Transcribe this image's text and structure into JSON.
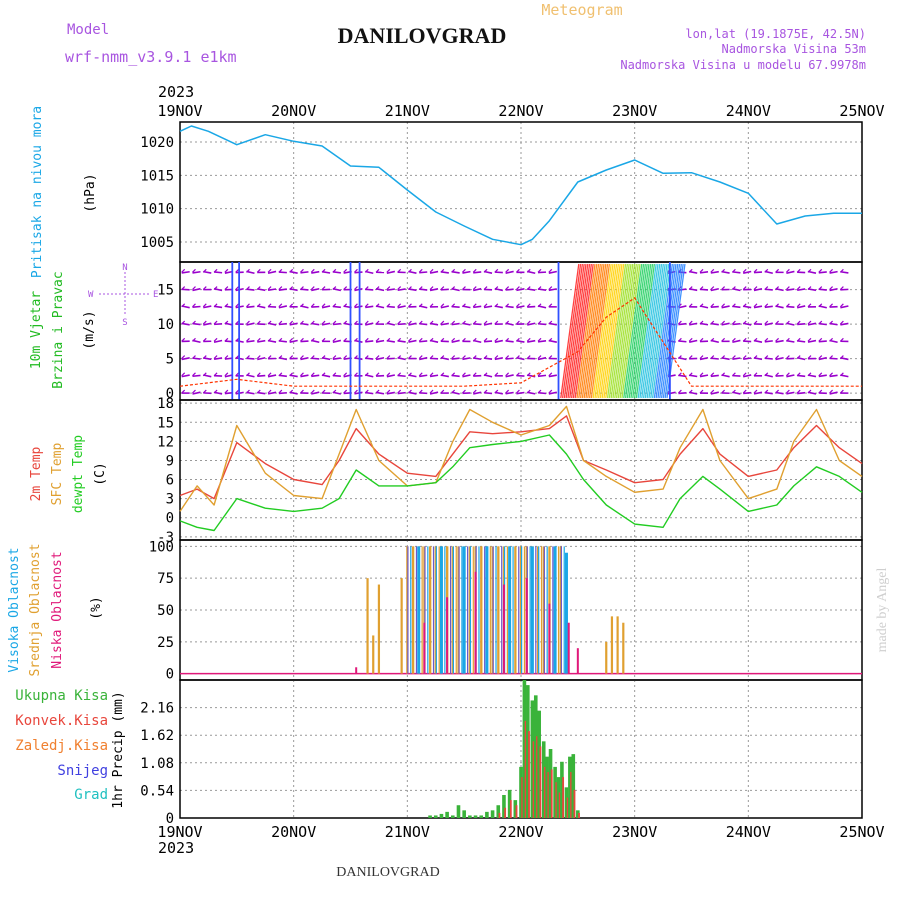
{
  "header": {
    "model_label": "Model",
    "model_name": "wrf-nmm_v3.9.1 e1km",
    "title": "DANILOVGRAD",
    "subtitle": "Meteogram",
    "coords": "lon,lat (19.1875E, 42.5N)",
    "elevation": "Nadmorska Visina 53m",
    "model_elevation": "Nadmorska Visina u modelu 67.9978m",
    "footer_title": "DANILOVGRAD",
    "credit": "made by Angel"
  },
  "colors": {
    "pressure": "#1aa7e6",
    "wind_label": "#22bb22",
    "wind_arrows": "#9900cc",
    "wind_gust": "#ff3300",
    "temp_2m": "#e8463c",
    "temp_sfc": "#e0a030",
    "temp_dew": "#22cc22",
    "cloud_high": "#1aa7e6",
    "cloud_mid": "#e0a030",
    "cloud_low": "#e0197a",
    "precip_total": "#3ab33a",
    "precip_conv": "#e8463c",
    "precip_frz": "#f08030",
    "precip_snow": "#4040e0",
    "precip_grad": "#20c0c0",
    "grid": "#999999"
  },
  "chart_data": [
    {
      "type": "line",
      "panel": "pressure",
      "label": "Pritisak na nivou mora",
      "unit": "(hPa)",
      "x_labels_top_year": "2023",
      "x_labels": [
        "19NOV",
        "20NOV",
        "21NOV",
        "22NOV",
        "23NOV",
        "24NOV",
        "25NOV"
      ],
      "ylim": [
        1002,
        1023
      ],
      "yticks": [
        1005,
        1010,
        1015,
        1020
      ],
      "x": [
        0,
        0.1,
        0.25,
        0.5,
        0.75,
        1.0,
        1.25,
        1.5,
        1.75,
        2.0,
        2.25,
        2.5,
        2.75,
        3.0,
        3.1,
        3.25,
        3.5,
        3.75,
        4.0,
        4.25,
        4.5,
        4.75,
        5.0,
        5.25,
        5.5,
        5.75,
        6.0
      ],
      "values": [
        1021.6,
        1022.4,
        1021.6,
        1019.6,
        1021.1,
        1020.1,
        1019.4,
        1016.4,
        1016.2,
        1012.8,
        1009.5,
        1007.4,
        1005.4,
        1004.6,
        1005.4,
        1008.2,
        1014.0,
        1015.8,
        1017.3,
        1015.3,
        1015.4,
        1014.0,
        1012.3,
        1007.7,
        1008.9,
        1009.3,
        1009.3
      ]
    },
    {
      "type": "line",
      "panel": "wind",
      "label_1": "10m Vjetar",
      "label_2": "Brzina i Pravac",
      "unit": "(m/s)",
      "compass": "N",
      "compass_e": "E",
      "compass_w": "W",
      "compass_s": "S",
      "ylim": [
        -1,
        19
      ],
      "yticks": [
        0,
        5,
        10,
        15
      ],
      "x": [
        0,
        0.25,
        0.5,
        1.0,
        1.5,
        2.0,
        2.5,
        3.0,
        3.5,
        3.75,
        4.0,
        4.5,
        5.0,
        6.0
      ],
      "gust": [
        1.0,
        1.5,
        2.0,
        1.0,
        1.0,
        1.0,
        1.0,
        1.5,
        6.0,
        11.0,
        13.8,
        1.0,
        1.0,
        1.0
      ],
      "storm_window": [
        3.35,
        4.3
      ]
    },
    {
      "type": "line",
      "panel": "temperature",
      "label_2m": "2m Temp",
      "label_sfc": "SFC Temp",
      "label_dew": "dewpt Temp",
      "unit": "(C)",
      "ylim": [
        -3.5,
        18.5
      ],
      "yticks": [
        -3,
        0,
        3,
        6,
        9,
        12,
        15,
        18
      ],
      "x": [
        0,
        0.15,
        0.3,
        0.5,
        0.75,
        1.0,
        1.25,
        1.4,
        1.55,
        1.75,
        2.0,
        2.25,
        2.4,
        2.55,
        2.75,
        3.0,
        3.25,
        3.4,
        3.55,
        3.75,
        4.0,
        4.25,
        4.4,
        4.6,
        4.75,
        5.0,
        5.25,
        5.4,
        5.6,
        5.8,
        6.0
      ],
      "series": [
        {
          "name": "2m Temp",
          "values": [
            3.5,
            4.5,
            3.0,
            11.8,
            8.5,
            6.0,
            5.2,
            9.0,
            14.0,
            10.0,
            7.0,
            6.5,
            10.0,
            13.5,
            13.2,
            13.5,
            14.0,
            16.0,
            9.0,
            7.5,
            5.5,
            6.0,
            10.0,
            14.0,
            10.0,
            6.5,
            7.5,
            11.0,
            14.5,
            11.0,
            8.5
          ]
        },
        {
          "name": "SFC Temp",
          "values": [
            1.0,
            5.0,
            2.0,
            14.5,
            7.0,
            3.5,
            3.0,
            10.0,
            17.0,
            9.0,
            5.0,
            5.5,
            12.0,
            17.0,
            15.0,
            13.0,
            14.5,
            17.5,
            9.0,
            6.5,
            4.0,
            4.5,
            11.0,
            17.0,
            9.0,
            3.0,
            4.5,
            12.0,
            17.0,
            9.0,
            6.5
          ]
        },
        {
          "name": "dewpt Temp",
          "values": [
            -0.5,
            -1.5,
            -2.0,
            3.0,
            1.5,
            1.0,
            1.5,
            3.0,
            7.5,
            5.0,
            5.0,
            5.5,
            8.0,
            11.0,
            11.5,
            12.0,
            13.0,
            10.0,
            6.0,
            2.0,
            -1.0,
            -1.5,
            3.0,
            6.5,
            4.5,
            1.0,
            2.0,
            5.0,
            8.0,
            6.5,
            4.0
          ]
        }
      ]
    },
    {
      "type": "bar",
      "panel": "cloud",
      "label_high": "Visoka Oblacnost",
      "label_mid": "Srednja Oblacnost",
      "label_low": "Niska Oblacnost",
      "unit": "(%)",
      "ylim": [
        -5,
        105
      ],
      "yticks": [
        0,
        25,
        50,
        75,
        100
      ],
      "mid_cloud_x": [
        1.65,
        1.7,
        1.75,
        1.95,
        2.0,
        2.05,
        2.1,
        2.15,
        2.2,
        2.25,
        2.3,
        2.35,
        2.4,
        2.45,
        2.5,
        2.55,
        2.6,
        2.65,
        2.7,
        2.75,
        2.8,
        2.85,
        2.9,
        2.95,
        3.0,
        3.05,
        3.1,
        3.15,
        3.2,
        3.25,
        3.3,
        3.35,
        3.75,
        3.8,
        3.85,
        3.9
      ],
      "mid_cloud_values": [
        75,
        30,
        70,
        75,
        100,
        100,
        100,
        100,
        100,
        100,
        100,
        100,
        100,
        100,
        100,
        100,
        100,
        100,
        100,
        100,
        100,
        100,
        100,
        100,
        100,
        100,
        100,
        100,
        100,
        100,
        100,
        100,
        25,
        45,
        45,
        40
      ],
      "high_cloud_x": [
        2.1,
        2.3,
        2.5,
        2.7,
        2.9,
        3.1,
        3.3,
        3.4
      ],
      "high_cloud_values": [
        100,
        100,
        100,
        100,
        100,
        100,
        100,
        95
      ],
      "low_cloud_x": [
        1.55,
        2.15,
        2.35,
        2.6,
        2.85,
        3.05,
        3.25,
        3.42,
        3.5
      ],
      "low_cloud_values": [
        5,
        40,
        60,
        80,
        70,
        75,
        55,
        40,
        20
      ]
    },
    {
      "type": "bar",
      "panel": "precip",
      "label_total": "Ukupna Kisa",
      "label_conv": "Konvek.Kisa",
      "label_frz": "Zaledj.Kisa",
      "label_snow": "Snijeg",
      "label_grad": "Grad",
      "unit": "1hr Precip (mm)",
      "ylim": [
        0,
        2.7
      ],
      "yticks": [
        0,
        0.54,
        1.08,
        1.62,
        2.16
      ],
      "ytick_labels": [
        "0",
        "0.54",
        "1.08",
        "1.62",
        "2.16"
      ],
      "x_labels_bottom_year": "2023",
      "x": [
        2.2,
        2.25,
        2.3,
        2.35,
        2.4,
        2.45,
        2.5,
        2.55,
        2.6,
        2.65,
        2.7,
        2.75,
        2.8,
        2.85,
        2.9,
        2.95,
        3.0,
        3.03,
        3.06,
        3.1,
        3.13,
        3.16,
        3.2,
        3.23,
        3.26,
        3.3,
        3.33,
        3.36,
        3.4,
        3.43,
        3.46,
        3.5
      ],
      "total": [
        0.05,
        0.05,
        0.08,
        0.12,
        0.05,
        0.25,
        0.15,
        0.05,
        0.05,
        0.05,
        0.12,
        0.15,
        0.25,
        0.45,
        0.55,
        0.35,
        1.0,
        2.7,
        2.6,
        2.3,
        2.4,
        2.1,
        1.5,
        1.2,
        1.35,
        1.0,
        0.8,
        1.1,
        0.6,
        1.2,
        1.25,
        0.15
      ],
      "conv": [
        0,
        0,
        0,
        0,
        0,
        0,
        0,
        0,
        0,
        0,
        0,
        0,
        0.1,
        0.2,
        0.35,
        0.25,
        0.8,
        1.9,
        1.7,
        1.5,
        1.6,
        1.4,
        1.0,
        0.9,
        0.95,
        0.7,
        0.5,
        0.8,
        0.4,
        0.9,
        0.55,
        0.1
      ]
    }
  ]
}
